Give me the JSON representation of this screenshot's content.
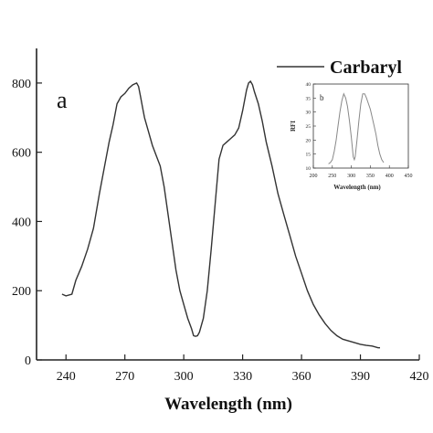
{
  "chart_data": [
    {
      "type": "line",
      "panel_label": "a",
      "xlabel": "Wavelength (nm)",
      "ylabel": "",
      "xlim": [
        225,
        420
      ],
      "ylim": [
        0,
        900
      ],
      "xticks": [
        240,
        270,
        300,
        330,
        360,
        390,
        420
      ],
      "yticks": [
        0,
        200,
        400,
        600,
        800
      ],
      "grid": false,
      "legend_position": "top-right",
      "series": [
        {
          "name": "Carbaryl",
          "color": "#333333",
          "x": [
            238,
            240,
            243,
            245,
            248,
            251,
            254,
            257,
            260,
            262,
            264,
            266,
            268,
            270,
            272,
            274,
            276,
            277,
            278,
            279,
            280,
            282,
            284,
            286,
            288,
            290,
            292,
            294,
            296,
            298,
            300,
            302,
            304,
            305,
            306,
            307,
            308,
            310,
            312,
            314,
            316,
            318,
            320,
            322,
            324,
            326,
            328,
            330,
            332,
            333,
            334,
            335,
            336,
            338,
            340,
            342,
            345,
            348,
            351,
            354,
            357,
            360,
            363,
            366,
            369,
            372,
            375,
            378,
            381,
            384,
            387,
            390,
            393,
            396,
            399,
            400
          ],
          "y": [
            190,
            185,
            190,
            230,
            270,
            320,
            380,
            480,
            570,
            630,
            680,
            740,
            760,
            770,
            785,
            795,
            800,
            790,
            760,
            730,
            700,
            660,
            620,
            590,
            560,
            500,
            420,
            340,
            260,
            200,
            160,
            120,
            90,
            70,
            68,
            70,
            80,
            120,
            200,
            320,
            450,
            580,
            620,
            630,
            640,
            650,
            670,
            720,
            780,
            800,
            805,
            795,
            775,
            740,
            690,
            630,
            560,
            480,
            420,
            360,
            300,
            250,
            200,
            160,
            130,
            105,
            85,
            70,
            60,
            55,
            50,
            45,
            42,
            40,
            35,
            35
          ]
        }
      ]
    },
    {
      "type": "line",
      "panel_label": "b",
      "xlabel": "Wavelength (nm)",
      "ylabel": "RFI",
      "xlim": [
        200,
        450
      ],
      "ylim": [
        10,
        40
      ],
      "xticks": [
        200,
        250,
        300,
        350,
        400,
        450
      ],
      "yticks": [
        10,
        15,
        20,
        25,
        30,
        35,
        40
      ],
      "grid": false,
      "series": [
        {
          "color": "#888888",
          "x": [
            240,
            245,
            250,
            255,
            260,
            265,
            270,
            275,
            280,
            285,
            290,
            295,
            300,
            305,
            308,
            310,
            315,
            320,
            325,
            330,
            335,
            340,
            345,
            350,
            355,
            360,
            365,
            370,
            375,
            380,
            385
          ],
          "y": [
            11.5,
            12,
            13,
            16,
            20,
            25,
            30,
            34,
            36.5,
            35,
            32,
            27,
            21,
            14,
            13,
            14,
            20,
            27,
            33,
            36.5,
            36.5,
            35,
            33,
            31,
            28,
            25,
            22,
            18,
            15,
            13,
            12
          ]
        }
      ]
    }
  ]
}
